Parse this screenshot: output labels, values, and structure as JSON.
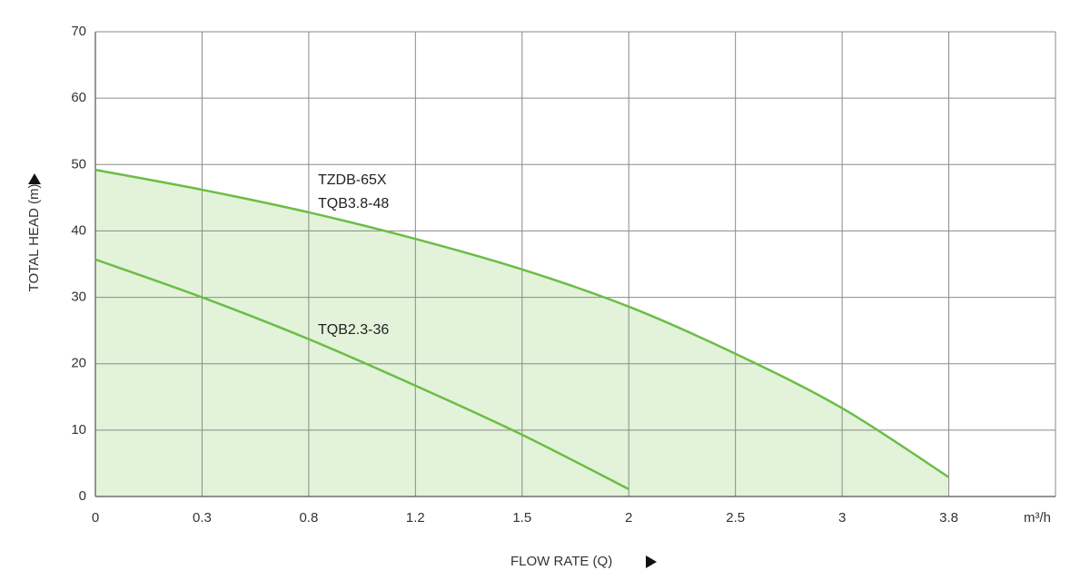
{
  "chart_data": {
    "type": "line",
    "x_label": "FLOW RATE (Q)",
    "y_label": "TOTAL HEAD (m)",
    "x_unit": "m³/h",
    "categories": [
      "0",
      "0.3",
      "0.8",
      "1.2",
      "1.5",
      "2",
      "2.5",
      "3",
      "3.8"
    ],
    "series": [
      {
        "labels": [
          "TZDB-65X",
          "TQB3.8-48"
        ],
        "color": "#6cbd45",
        "fill": "#e2f3da",
        "values": [
          49.2,
          46.2,
          42.8,
          38.8,
          34.2,
          28.6,
          21.5,
          13.3,
          2.9
        ]
      },
      {
        "labels": [
          "TQB2.3-36"
        ],
        "color": "#6cbd45",
        "values": [
          35.7,
          30,
          23.7,
          16.7,
          9.3,
          1.1,
          null,
          null,
          null
        ]
      }
    ],
    "ylim": [
      0,
      70
    ],
    "yticks": [
      0,
      10,
      20,
      30,
      40,
      50,
      60,
      70
    ],
    "grid": true
  }
}
